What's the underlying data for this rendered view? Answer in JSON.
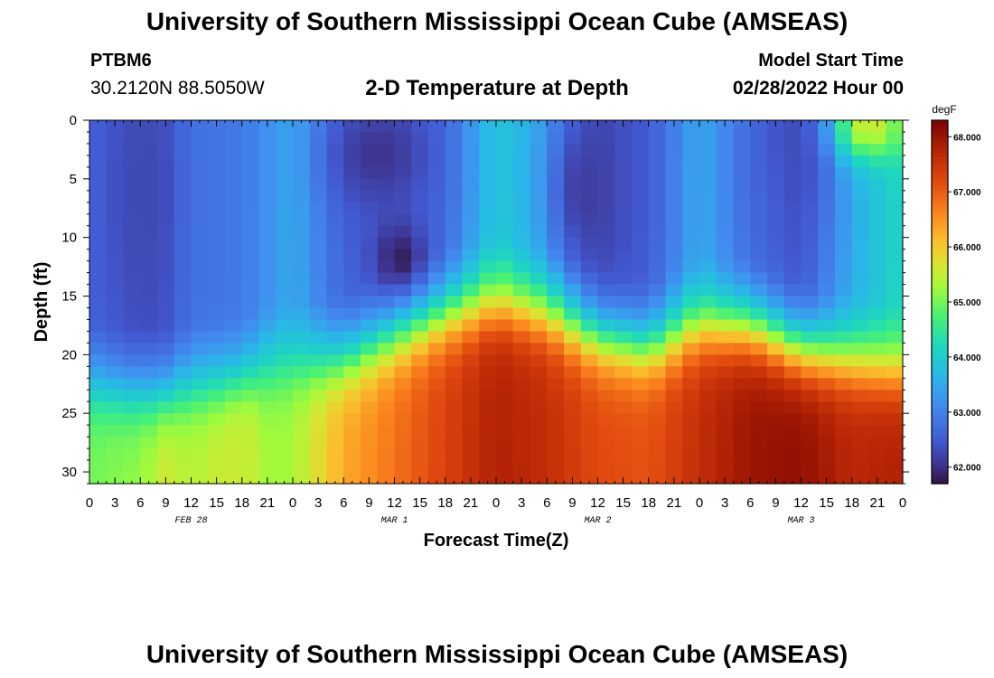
{
  "header": {
    "title": "University of Southern Mississippi Ocean Cube (AMSEAS)",
    "station": "PTBM6",
    "coords": "30.2120N  88.5050W",
    "subtitle": "2-D Temperature at Depth",
    "start_label": "Model Start Time",
    "start_value": "02/28/2022 Hour 00"
  },
  "footer": {
    "title": "University of Southern Mississippi Ocean Cube (AMSEAS)"
  },
  "chart_data": {
    "type": "heatmap",
    "xlabel": "Forecast Time(Z)",
    "ylabel": "Depth (ft)",
    "x_range_hours": [
      0,
      96
    ],
    "y_range_ft": [
      0,
      31
    ],
    "y_inverted": true,
    "x_tick_labels": [
      "0",
      "3",
      "6",
      "9",
      "12",
      "15",
      "18",
      "21",
      "0",
      "3",
      "6",
      "9",
      "12",
      "15",
      "18",
      "21",
      "0",
      "3",
      "6",
      "9",
      "12",
      "15",
      "18",
      "21",
      "0",
      "3",
      "6",
      "9",
      "12",
      "15",
      "18",
      "21",
      "0"
    ],
    "y_ticks": [
      0,
      5,
      10,
      15,
      20,
      25,
      30
    ],
    "day_labels": [
      {
        "label": "FEB 28",
        "hour": 12
      },
      {
        "label": "MAR 1",
        "hour": 36
      },
      {
        "label": "MAR 2",
        "hour": 60
      },
      {
        "label": "MAR 3",
        "hour": 84
      }
    ],
    "colorbar": {
      "unit": "degF",
      "min": 61.7,
      "max": 68.3,
      "ticks": [
        "62.000",
        "63.000",
        "64.000",
        "65.000",
        "66.000",
        "67.000",
        "68.000"
      ]
    },
    "cell_hours": 2,
    "cell_ft": 1,
    "profile": {
      "time_hours": [
        0,
        6,
        9,
        12,
        18,
        21,
        24,
        30,
        36,
        42,
        48,
        54,
        60,
        66,
        72,
        78,
        84,
        90,
        96
      ],
      "thermocline_ft": [
        23.5,
        24,
        24,
        23.5,
        23,
        22,
        22,
        21,
        19,
        17,
        16,
        17,
        19,
        20,
        18,
        18,
        20,
        21,
        22
      ],
      "surface_temp_degF": [
        62.6,
        62.3,
        62.4,
        62.8,
        62.9,
        63.2,
        63.5,
        62.6,
        62.5,
        62.7,
        63.9,
        63.4,
        62.3,
        62.5,
        63.5,
        62.7,
        62.4,
        63.5,
        64.2
      ],
      "bottom_temp_degF": [
        65.0,
        65.2,
        65.6,
        65.4,
        65.7,
        65.2,
        65.3,
        66.3,
        66.8,
        67.3,
        67.8,
        67.6,
        67.2,
        67.1,
        67.6,
        68.0,
        68.1,
        67.7,
        67.8
      ]
    },
    "features": [
      {
        "kind": "warm-surface-patch",
        "hour": 92,
        "depth_ft": 0.5,
        "temp_degF": 65.8
      },
      {
        "kind": "cold-core",
        "hour": 36.7,
        "depth_ft": 12,
        "temp_degF": 61.7
      },
      {
        "kind": "cold-band",
        "hour": 34,
        "depth_ft": 3,
        "temp_degF": 62.0
      },
      {
        "kind": "cold-streak",
        "hour": 58,
        "depth_ft": 6,
        "temp_degF": 62.1
      },
      {
        "kind": "cold-streak",
        "hour": 6,
        "depth_ft": 6,
        "temp_degF": 62.3
      },
      {
        "kind": "cold-streak",
        "hour": 84,
        "depth_ft": 0.5,
        "temp_degF": 62.3
      },
      {
        "kind": "warm-column",
        "hour": 18.5,
        "depth_ft": 29,
        "temp_degF": 65.5
      }
    ]
  }
}
